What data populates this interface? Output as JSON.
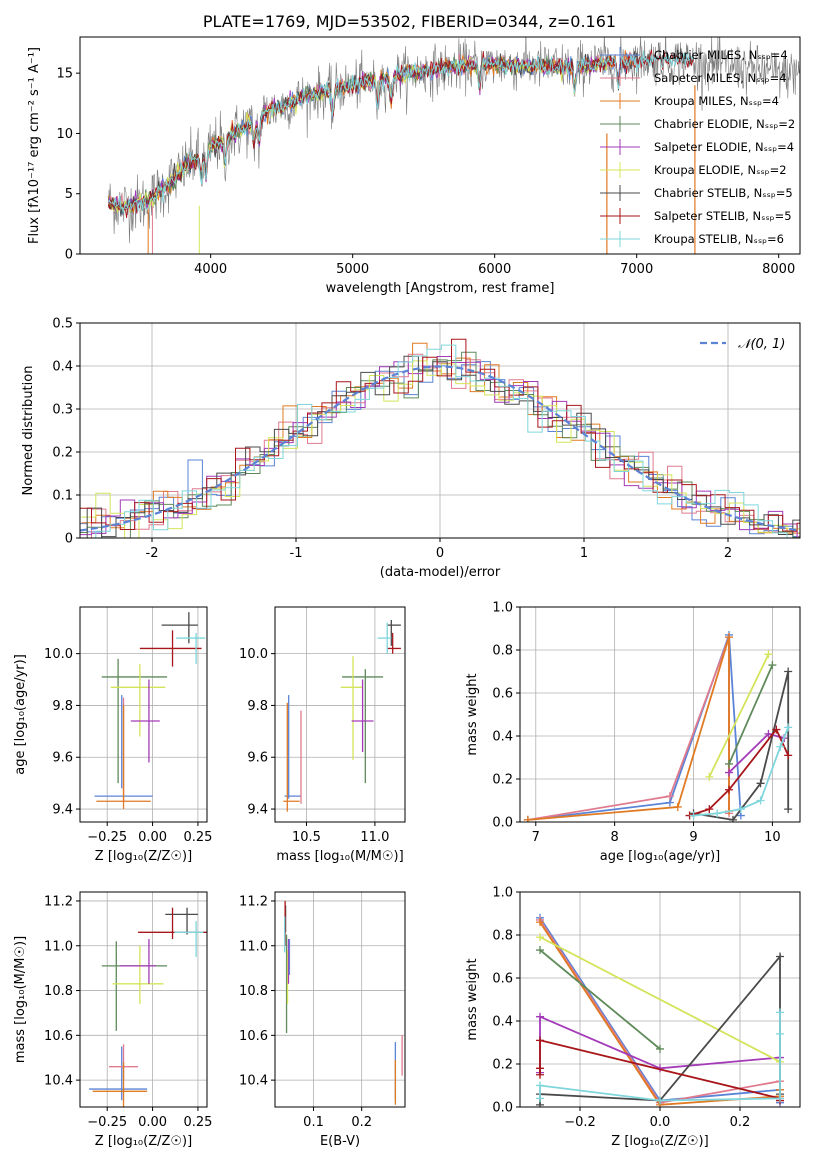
{
  "figure_title": "PLATE=1769, MJD=53502, FIBERID=0344, z=0.161",
  "colors": {
    "Chabrier MILES": "#5b84d6",
    "Salpeter MILES": "#e07b8f",
    "Kroupa MILES": "#e07a23",
    "Chabrier ELODIE": "#5f8a5a",
    "Salpeter ELODIE": "#a33ab8",
    "Kroupa ELODIE": "#d4e45a",
    "Chabrier STELIB": "#4a4a4a",
    "Salpeter STELIB": "#a8161b",
    "Kroupa STELIB": "#7fd6dc",
    "data": "#7a7a7a"
  },
  "chart_data": [
    {
      "id": "spectrum",
      "type": "line",
      "title": "PLATE=1769, MJD=53502, FIBERID=0344, z=0.161",
      "xlabel": "wavelength [Angstrom, rest frame]",
      "ylabel": "Flux [fλ10⁻¹⁷ erg cm⁻² s⁻¹ A⁻¹]",
      "xlim": [
        3080,
        8150
      ],
      "ylim": [
        0,
        18
      ],
      "xticks": [
        4000,
        5000,
        6000,
        7000,
        8000
      ],
      "yticks": [
        0,
        5,
        10,
        15
      ],
      "legend_position": "upper right",
      "legend": [
        "Chabrier MILES, N_SSP=4",
        "Salpeter MILES, N_SSP=4",
        "Kroupa MILES, N_SSP=4",
        "Chabrier ELODIE, N_SSP=2",
        "Salpeter ELODIE, N_SSP=4",
        "Kroupa ELODIE, N_SSP=2",
        "Chabrier STELIB, N_SSP=5",
        "Salpeter STELIB, N_SSP=5",
        "Kroupa STELIB, N_SSP=6"
      ],
      "continuum": {
        "x": [
          3280,
          3400,
          3550,
          3700,
          3850,
          4000,
          4200,
          4400,
          4700,
          5000,
          5300,
          5600,
          5900,
          6200,
          6500,
          6800,
          7100,
          7400,
          7700,
          8000
        ],
        "y": [
          4.2,
          4.0,
          4.3,
          5.8,
          7.5,
          8.8,
          10.2,
          11.8,
          13.2,
          14.0,
          14.8,
          15.3,
          15.8,
          15.6,
          15.5,
          15.9,
          16.2,
          16.0,
          15.5,
          15.0
        ]
      }
    },
    {
      "id": "residuals",
      "type": "line",
      "xlabel": "(data-model)/error",
      "ylabel": "Normed distribution",
      "xlim": [
        -2.5,
        2.5
      ],
      "ylim": [
        0,
        0.5
      ],
      "xticks": [
        -2,
        -1,
        0,
        1,
        2
      ],
      "yticks": [
        0.0,
        0.1,
        0.2,
        0.3,
        0.4,
        0.5
      ],
      "legend": "𝒩(0, 1)",
      "legend_position": "upper right",
      "series_model": "normal_pdf"
    },
    {
      "id": "age_vs_Z",
      "type": "scatter",
      "xlabel": "Z [log₁₀(Z/Z☉)]",
      "ylabel": "age  [log₁₀(age/yr)]",
      "xlim": [
        -0.4,
        0.3
      ],
      "ylim": [
        9.35,
        10.18
      ],
      "xticks": [
        -0.25,
        0.0,
        0.25
      ],
      "xticklabels": [
        "−0.25",
        "0.00",
        "0.25"
      ],
      "yticks": [
        9.4,
        9.6,
        9.8,
        10.0
      ],
      "yticklabels": [
        "9.4",
        "9.6",
        "9.8",
        "10.0"
      ],
      "points": [
        {
          "model": "Chabrier MILES",
          "x": -0.16,
          "xerr": 0.16,
          "y": 9.45,
          "yerr": 0.0
        },
        {
          "model": "Chabrier MILES",
          "x": -0.17,
          "xerr": 0.0,
          "y": 9.66,
          "yerr": 0.18
        },
        {
          "model": "Salpeter MILES",
          "x": -0.16,
          "xerr": 0.0,
          "y": 9.63,
          "yerr": 0.2
        },
        {
          "model": "Kroupa MILES",
          "x": -0.16,
          "xerr": 0.15,
          "y": 9.43,
          "yerr": 0.0
        },
        {
          "model": "Kroupa MILES",
          "x": -0.16,
          "xerr": 0.0,
          "y": 9.6,
          "yerr": 0.2
        },
        {
          "model": "Chabrier ELODIE",
          "x": -0.1,
          "xerr": 0.18,
          "y": 9.91,
          "yerr": 0.0
        },
        {
          "model": "Chabrier ELODIE",
          "x": -0.19,
          "xerr": 0.0,
          "y": 9.74,
          "yerr": 0.24
        },
        {
          "model": "Kroupa ELODIE",
          "x": -0.08,
          "xerr": 0.15,
          "y": 9.87,
          "yerr": 0.0
        },
        {
          "model": "Kroupa ELODIE",
          "x": -0.07,
          "xerr": 0.0,
          "y": 9.82,
          "yerr": 0.14
        },
        {
          "model": "Salpeter ELODIE",
          "x": -0.04,
          "xerr": 0.08,
          "y": 9.74,
          "yerr": 0.0
        },
        {
          "model": "Salpeter ELODIE",
          "x": -0.02,
          "xerr": 0.0,
          "y": 9.74,
          "yerr": 0.16
        },
        {
          "model": "Chabrier STELIB",
          "x": 0.15,
          "xerr": 0.1,
          "y": 10.11,
          "yerr": 0.0
        },
        {
          "model": "Chabrier STELIB",
          "x": 0.2,
          "xerr": 0.0,
          "y": 10.1,
          "yerr": 0.06
        },
        {
          "model": "Salpeter STELIB",
          "x": 0.1,
          "xerr": 0.17,
          "y": 10.02,
          "yerr": 0.0
        },
        {
          "model": "Salpeter STELIB",
          "x": 0.11,
          "xerr": 0.0,
          "y": 10.02,
          "yerr": 0.07
        },
        {
          "model": "Kroupa STELIB",
          "x": 0.21,
          "xerr": 0.08,
          "y": 10.06,
          "yerr": 0.0
        },
        {
          "model": "Kroupa STELIB",
          "x": 0.24,
          "xerr": 0.0,
          "y": 10.02,
          "yerr": 0.06
        }
      ]
    },
    {
      "id": "age_vs_mass",
      "type": "scatter",
      "xlabel": "mass [log₁₀(M/M☉)]",
      "ylabel": "",
      "xlim": [
        10.27,
        11.22
      ],
      "ylim": [
        9.35,
        10.18
      ],
      "xticks": [
        10.5,
        11.0
      ],
      "xticklabels": [
        "10.5",
        "11.0"
      ],
      "yticks": [
        9.4,
        9.6,
        9.8,
        10.0
      ],
      "yticklabels": [
        "9.4",
        "9.6",
        "9.8",
        "10.0"
      ],
      "points": [
        {
          "model": "Chabrier MILES",
          "x": 10.4,
          "xerr": 0.06,
          "y": 9.45,
          "yerr": 0.0
        },
        {
          "model": "Chabrier MILES",
          "x": 10.37,
          "xerr": 0.0,
          "y": 9.64,
          "yerr": 0.2
        },
        {
          "model": "Salpeter MILES",
          "x": 10.46,
          "xerr": 0.0,
          "y": 9.6,
          "yerr": 0.18
        },
        {
          "model": "Kroupa MILES",
          "x": 10.39,
          "xerr": 0.06,
          "y": 9.43,
          "yerr": 0.0
        },
        {
          "model": "Kroupa MILES",
          "x": 10.36,
          "xerr": 0.0,
          "y": 9.6,
          "yerr": 0.21
        },
        {
          "model": "Chabrier ELODIE",
          "x": 10.91,
          "xerr": 0.15,
          "y": 9.91,
          "yerr": 0.0
        },
        {
          "model": "Chabrier ELODIE",
          "x": 10.93,
          "xerr": 0.0,
          "y": 9.72,
          "yerr": 0.22
        },
        {
          "model": "Kroupa ELODIE",
          "x": 10.83,
          "xerr": 0.08,
          "y": 9.87,
          "yerr": 0.0
        },
        {
          "model": "Kroupa ELODIE",
          "x": 10.84,
          "xerr": 0.0,
          "y": 9.79,
          "yerr": 0.2
        },
        {
          "model": "Salpeter ELODIE",
          "x": 10.91,
          "xerr": 0.08,
          "y": 9.74,
          "yerr": 0.0
        },
        {
          "model": "Salpeter ELODIE",
          "x": 10.91,
          "xerr": 0.0,
          "y": 9.76,
          "yerr": 0.14
        },
        {
          "model": "Chabrier STELIB",
          "x": 11.14,
          "xerr": 0.05,
          "y": 10.11,
          "yerr": 0.0
        },
        {
          "model": "Chabrier STELIB",
          "x": 11.12,
          "xerr": 0.0,
          "y": 10.08,
          "yerr": 0.05
        },
        {
          "model": "Salpeter STELIB",
          "x": 11.14,
          "xerr": 0.05,
          "y": 10.02,
          "yerr": 0.0
        },
        {
          "model": "Salpeter STELIB",
          "x": 11.13,
          "xerr": 0.0,
          "y": 10.04,
          "yerr": 0.04
        },
        {
          "model": "Kroupa STELIB",
          "x": 11.07,
          "xerr": 0.05,
          "y": 10.06,
          "yerr": 0.0
        },
        {
          "model": "Kroupa STELIB",
          "x": 11.09,
          "xerr": 0.0,
          "y": 10.06,
          "yerr": 0.06
        }
      ]
    },
    {
      "id": "weight_vs_age",
      "type": "line",
      "xlabel": "age  [log₁₀(age/yr)]",
      "ylabel": "mass weight",
      "xlim": [
        6.8,
        10.35
      ],
      "ylim": [
        0,
        1
      ],
      "xticks": [
        7,
        8,
        9,
        10
      ],
      "xticklabels": [
        "7",
        "8",
        "9",
        "10"
      ],
      "yticks": [
        0.0,
        0.2,
        0.4,
        0.6,
        0.8,
        1.0
      ],
      "yticklabels": [
        "0.0",
        "0.2",
        "0.4",
        "0.6",
        "0.8",
        "1.0"
      ],
      "series": [
        {
          "model": "Chabrier MILES",
          "x": [
            6.9,
            8.7,
            9.45,
            9.6
          ],
          "y": [
            0.01,
            0.09,
            0.87,
            0.03
          ]
        },
        {
          "model": "Salpeter MILES",
          "x": [
            6.9,
            8.7,
            9.45,
            9.45
          ],
          "y": [
            0.01,
            0.12,
            0.86,
            0.04
          ]
        },
        {
          "model": "Kroupa MILES",
          "x": [
            6.9,
            8.8,
            9.45,
            9.45
          ],
          "y": [
            0.01,
            0.07,
            0.86,
            0.05
          ]
        },
        {
          "model": "Chabrier ELODIE",
          "x": [
            9.45,
            10.0
          ],
          "y": [
            0.27,
            0.73
          ]
        },
        {
          "model": "Salpeter ELODIE",
          "x": [
            9.45,
            9.95,
            10.15
          ],
          "y": [
            0.23,
            0.41,
            0.39
          ]
        },
        {
          "model": "Kroupa ELODIE",
          "x": [
            9.2,
            9.95
          ],
          "y": [
            0.21,
            0.78
          ]
        },
        {
          "model": "Chabrier STELIB",
          "x": [
            9.0,
            9.5,
            9.85,
            10.2,
            10.2
          ],
          "y": [
            0.04,
            0.01,
            0.18,
            0.7,
            0.06
          ]
        },
        {
          "model": "Salpeter STELIB",
          "x": [
            8.95,
            9.2,
            9.45,
            10.05,
            10.2
          ],
          "y": [
            0.03,
            0.06,
            0.15,
            0.43,
            0.31
          ]
        },
        {
          "model": "Kroupa STELIB",
          "x": [
            9.0,
            9.3,
            9.6,
            9.85,
            10.1,
            10.2
          ],
          "y": [
            0.03,
            0.04,
            0.06,
            0.1,
            0.35,
            0.44
          ]
        }
      ]
    },
    {
      "id": "mass_vs_Z",
      "type": "scatter",
      "xlabel": "Z [log₁₀(Z/Z☉)]",
      "ylabel": "mass [log₁₀(M/M☉)]",
      "xlim": [
        -0.4,
        0.3
      ],
      "ylim": [
        10.28,
        11.24
      ],
      "xticks": [
        -0.25,
        0.0,
        0.25
      ],
      "xticklabels": [
        "−0.25",
        "0.00",
        "0.25"
      ],
      "yticks": [
        10.4,
        10.6,
        10.8,
        11.0,
        11.2
      ],
      "yticklabels": [
        "10.4",
        "10.6",
        "10.8",
        "11.0",
        "11.2"
      ],
      "points": [
        {
          "model": "Chabrier MILES",
          "x": -0.19,
          "xerr": 0.16,
          "y": 10.36,
          "yerr": 0.0
        },
        {
          "model": "Chabrier MILES",
          "x": -0.17,
          "xerr": 0.0,
          "y": 10.43,
          "yerr": 0.12
        },
        {
          "model": "Salpeter MILES",
          "x": -0.16,
          "xerr": 0.08,
          "y": 10.46,
          "yerr": 0.0
        },
        {
          "model": "Salpeter MILES",
          "x": -0.16,
          "xerr": 0.0,
          "y": 10.48,
          "yerr": 0.08
        },
        {
          "model": "Kroupa MILES",
          "x": -0.18,
          "xerr": 0.15,
          "y": 10.35,
          "yerr": 0.0
        },
        {
          "model": "Kroupa MILES",
          "x": -0.16,
          "xerr": 0.0,
          "y": 10.38,
          "yerr": 0.1
        },
        {
          "model": "Chabrier ELODIE",
          "x": -0.1,
          "xerr": 0.18,
          "y": 10.91,
          "yerr": 0.0
        },
        {
          "model": "Chabrier ELODIE",
          "x": -0.2,
          "xerr": 0.0,
          "y": 10.82,
          "yerr": 0.2
        },
        {
          "model": "Kroupa ELODIE",
          "x": -0.08,
          "xerr": 0.14,
          "y": 10.83,
          "yerr": 0.0
        },
        {
          "model": "Kroupa ELODIE",
          "x": -0.07,
          "xerr": 0.0,
          "y": 10.87,
          "yerr": 0.13
        },
        {
          "model": "Salpeter ELODIE",
          "x": -0.08,
          "xerr": 0.1,
          "y": 10.91,
          "yerr": 0.0
        },
        {
          "model": "Salpeter ELODIE",
          "x": -0.02,
          "xerr": 0.0,
          "y": 10.93,
          "yerr": 0.1
        },
        {
          "model": "Chabrier STELIB",
          "x": 0.16,
          "xerr": 0.09,
          "y": 11.14,
          "yerr": 0.0
        },
        {
          "model": "Chabrier STELIB",
          "x": 0.19,
          "xerr": 0.0,
          "y": 11.11,
          "yerr": 0.06
        },
        {
          "model": "Salpeter STELIB",
          "x": 0.11,
          "xerr": 0.19,
          "y": 11.06,
          "yerr": 0.0
        },
        {
          "model": "Salpeter STELIB",
          "x": 0.11,
          "xerr": 0.0,
          "y": 11.1,
          "yerr": 0.07
        },
        {
          "model": "Kroupa STELIB",
          "x": 0.2,
          "xerr": 0.08,
          "y": 11.06,
          "yerr": 0.0
        },
        {
          "model": "Kroupa STELIB",
          "x": 0.24,
          "xerr": 0.0,
          "y": 11.03,
          "yerr": 0.08
        }
      ]
    },
    {
      "id": "mass_vs_ebv",
      "type": "scatter",
      "xlabel": "E(B-V)",
      "ylabel": "",
      "xlim": [
        0.02,
        0.29
      ],
      "ylim": [
        10.28,
        11.24
      ],
      "xticks": [
        0.1,
        0.2
      ],
      "xticklabels": [
        "0.1",
        "0.2"
      ],
      "yticks": [
        10.4,
        10.6,
        10.8,
        11.0,
        11.2
      ],
      "yticklabels": [
        "10.4",
        "10.6",
        "10.8",
        "11.0",
        "11.2"
      ],
      "points": [
        {
          "model": "Chabrier MILES",
          "x": 0.27,
          "xerr": 0.0,
          "y": 10.44,
          "yerr": 0.13
        },
        {
          "model": "Salpeter MILES",
          "x": 0.284,
          "xerr": 0.0,
          "y": 10.51,
          "yerr": 0.09
        },
        {
          "model": "Kroupa MILES",
          "x": 0.27,
          "xerr": 0.0,
          "y": 10.39,
          "yerr": 0.1
        },
        {
          "model": "Chabrier ELODIE",
          "x": 0.044,
          "xerr": 0.0,
          "y": 10.83,
          "yerr": 0.22
        },
        {
          "model": "Kroupa ELODIE",
          "x": 0.046,
          "xerr": 0.0,
          "y": 10.86,
          "yerr": 0.12
        },
        {
          "model": "Salpeter ELODIE",
          "x": 0.048,
          "xerr": 0.0,
          "y": 10.93,
          "yerr": 0.1
        },
        {
          "model": "Chabrier STELIB",
          "x": 0.042,
          "xerr": 0.0,
          "y": 11.12,
          "yerr": 0.06
        },
        {
          "model": "Salpeter STELIB",
          "x": 0.041,
          "xerr": 0.0,
          "y": 11.1,
          "yerr": 0.1
        },
        {
          "model": "Kroupa STELIB",
          "x": 0.04,
          "xerr": 0.0,
          "y": 11.05,
          "yerr": 0.08
        },
        {
          "model": "Chabrier MILES",
          "x": 0.05,
          "xerr": 0.0,
          "y": 10.95,
          "yerr": 0.08
        }
      ]
    },
    {
      "id": "weight_vs_Z",
      "type": "line",
      "xlabel": "Z [log₁₀(Z/Z☉)]",
      "ylabel": "mass weight",
      "xlim": [
        -0.35,
        0.35
      ],
      "ylim": [
        0,
        1
      ],
      "xticks": [
        -0.2,
        0.0,
        0.2
      ],
      "xticklabels": [
        "−0.2",
        "0.0",
        "0.2"
      ],
      "yticks": [
        0.0,
        0.2,
        0.4,
        0.6,
        0.8,
        1.0
      ],
      "yticklabels": [
        "0.0",
        "0.2",
        "0.4",
        "0.6",
        "0.8",
        "1.0"
      ],
      "series": [
        {
          "model": "Chabrier MILES",
          "x": [
            -0.3,
            0.0,
            0.3,
            0.3
          ],
          "y": [
            0.88,
            0.03,
            0.08,
            0.02
          ]
        },
        {
          "model": "Salpeter MILES",
          "x": [
            -0.3,
            0.0,
            0.3,
            0.3
          ],
          "y": [
            0.87,
            0.02,
            0.12,
            0.03
          ]
        },
        {
          "model": "Kroupa MILES",
          "x": [
            -0.3,
            0.0,
            0.3,
            0.3
          ],
          "y": [
            0.86,
            0.01,
            0.05,
            0.08
          ]
        },
        {
          "model": "Chabrier ELODIE",
          "x": [
            -0.3,
            0.0
          ],
          "y": [
            0.73,
            0.27
          ]
        },
        {
          "model": "Salpeter ELODIE",
          "x": [
            -0.3,
            -0.3,
            0.0,
            0.3
          ],
          "y": [
            0.16,
            0.42,
            0.18,
            0.23
          ]
        },
        {
          "model": "Kroupa ELODIE",
          "x": [
            -0.3,
            0.3
          ],
          "y": [
            0.79,
            0.21
          ]
        },
        {
          "model": "Chabrier STELIB",
          "x": [
            -0.3,
            -0.3,
            0.0,
            0.3,
            0.3
          ],
          "y": [
            0.01,
            0.06,
            0.03,
            0.7,
            0.06
          ]
        },
        {
          "model": "Salpeter STELIB",
          "x": [
            -0.3,
            -0.3,
            -0.3,
            0.3,
            0.3
          ],
          "y": [
            0.15,
            0.18,
            0.31,
            0.04,
            0.03
          ]
        },
        {
          "model": "Kroupa STELIB",
          "x": [
            -0.3,
            -0.3,
            0.0,
            0.3,
            0.3,
            0.3
          ],
          "y": [
            0.04,
            0.1,
            0.03,
            0.04,
            0.34,
            0.44
          ]
        }
      ]
    }
  ]
}
